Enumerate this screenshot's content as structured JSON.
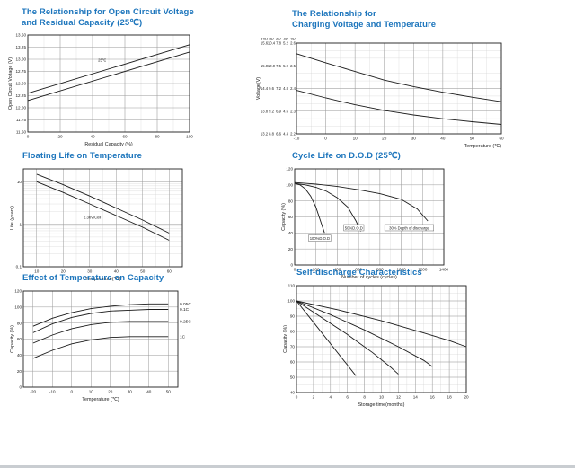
{
  "page": {
    "background": "#ffffff",
    "title_color": "#1c75bc"
  },
  "chart_data": [
    {
      "name": "open-circuit-voltage-vs-residual-capacity",
      "type": "line",
      "title": "The Relationship for Open Circuit Voltage\nand Residual Capacity (25℃)",
      "xlabel": "Residual Capacity (%)",
      "ylabel": "Open Circuit Voltage (V)",
      "xlim": [
        0,
        100
      ],
      "ylim": [
        11.5,
        13.5
      ],
      "xticks": [
        0,
        20,
        40,
        60,
        80,
        100
      ],
      "yticks": [
        11.5,
        11.75,
        12,
        12.25,
        12.5,
        12.75,
        13,
        13.25,
        13.5
      ],
      "ytick_labels": [
        "11.50",
        "11.75",
        "12.00",
        "12.25",
        "12.50",
        "12.75",
        "13.00",
        "13.25",
        "13.50"
      ],
      "xminor": 2,
      "yminor": 1,
      "grid": true,
      "legend": "none",
      "series": [
        {
          "name": "upper-line",
          "points": [
            [
              0,
              12.3
            ],
            [
              100,
              13.3
            ]
          ]
        },
        {
          "name": "lower-line",
          "points": [
            [
              0,
              12.15
            ],
            [
              100,
              13.15
            ]
          ]
        }
      ],
      "annotations": [
        {
          "x": 46,
          "y": 12.98,
          "text": "25℃"
        }
      ]
    },
    {
      "name": "charging-voltage-vs-temperature",
      "type": "line",
      "title": "The Relationship for\nCharging Voltage and Temperature",
      "xlabel": "Temperature (℃)",
      "xlabel_pos": "right",
      "ylabel": "Voltage(V)",
      "xlim": [
        -10,
        60
      ],
      "ylim": [
        13.2,
        15.6
      ],
      "xticks": [
        -10,
        0,
        10,
        20,
        30,
        40,
        50,
        60
      ],
      "yticks": [
        13.2,
        13.8,
        14.4,
        15,
        15.6
      ],
      "y_multi": {
        "headers": [
          "12V",
          "8V",
          "6V",
          "4V",
          "2V"
        ],
        "row_values": [
          15.6,
          15,
          14.4,
          13.8,
          13.2
        ],
        "rows": [
          [
            "15.6",
            "10.4",
            "7.8",
            "5.2",
            "2.6"
          ],
          [
            "15.0",
            "10.0",
            "7.5",
            "5.0",
            "2.5"
          ],
          [
            "14.4",
            "9.6",
            "7.2",
            "4.8",
            "2.4"
          ],
          [
            "13.8",
            "9.2",
            "6.9",
            "4.6",
            "2.3"
          ],
          [
            "13.2",
            "8.8",
            "6.6",
            "4.4",
            "2.2"
          ]
        ]
      },
      "xminor": 2,
      "yminor": 3,
      "grid": true,
      "legend": "none",
      "series": [
        {
          "name": "cycle-use",
          "points": [
            [
              -10,
              15.32
            ],
            [
              0,
              15.08
            ],
            [
              10,
              14.85
            ],
            [
              20,
              14.62
            ],
            [
              30,
              14.45
            ],
            [
              40,
              14.3
            ],
            [
              50,
              14.17
            ],
            [
              60,
              14.05
            ]
          ]
        },
        {
          "name": "float-use",
          "points": [
            [
              -10,
              14.35
            ],
            [
              0,
              14.15
            ],
            [
              10,
              13.97
            ],
            [
              20,
              13.82
            ],
            [
              30,
              13.7
            ],
            [
              40,
              13.6
            ],
            [
              50,
              13.52
            ],
            [
              60,
              13.45
            ]
          ]
        }
      ]
    },
    {
      "name": "floating-life-on-temperature",
      "type": "line",
      "title": "Floating Life on Temperature",
      "xlabel": "Temperature(℃)",
      "ylabel": "Life (years)",
      "xlim": [
        5,
        65
      ],
      "ylim": [
        0.1,
        20
      ],
      "logy": true,
      "xticks": [
        10,
        20,
        30,
        40,
        50,
        60
      ],
      "yticks": [
        10,
        1,
        0.1
      ],
      "ytick_labels": [
        "10",
        "1",
        "0.1"
      ],
      "xminor": 2,
      "yminor": 1,
      "grid": true,
      "legend": "none",
      "series": [
        {
          "name": "upper-line",
          "points": [
            [
              10,
              15
            ],
            [
              20,
              8.5
            ],
            [
              30,
              4.6
            ],
            [
              40,
              2.4
            ],
            [
              50,
              1.25
            ],
            [
              60,
              0.62
            ]
          ]
        },
        {
          "name": "lower-line",
          "points": [
            [
              10,
              10
            ],
            [
              20,
              5.6
            ],
            [
              30,
              3
            ],
            [
              40,
              1.6
            ],
            [
              50,
              0.85
            ],
            [
              60,
              0.42
            ]
          ]
        }
      ],
      "annotations": [
        {
          "x": 31,
          "y": 1.45,
          "text": "2.30V/Cell"
        }
      ]
    },
    {
      "name": "cycle-life-on-dod",
      "type": "line",
      "title": "Cycle Life on D.O.D (25℃)",
      "xlabel": "Number of cycles (cycles)",
      "ylabel": "Capacity (%)",
      "xlim": [
        0,
        1400
      ],
      "ylim": [
        0,
        120
      ],
      "xticks": [
        0,
        200,
        400,
        600,
        800,
        1000,
        1200,
        1400
      ],
      "yticks": [
        0,
        20,
        40,
        60,
        80,
        100,
        120
      ],
      "xminor": 2,
      "yminor": 1,
      "grid": true,
      "legend": "none",
      "series": [
        {
          "name": "dod-100",
          "points": [
            [
              0,
              102
            ],
            [
              50,
              100
            ],
            [
              100,
              95
            ],
            [
              150,
              86
            ],
            [
              200,
              72
            ],
            [
              250,
              52
            ],
            [
              280,
              40
            ]
          ]
        },
        {
          "name": "dod-50",
          "points": [
            [
              0,
              102
            ],
            [
              100,
              100
            ],
            [
              200,
              97
            ],
            [
              300,
              92
            ],
            [
              400,
              84
            ],
            [
              500,
              72
            ],
            [
              575,
              55
            ],
            [
              620,
              42
            ]
          ]
        },
        {
          "name": "dod-30",
          "points": [
            [
              0,
              103
            ],
            [
              200,
              101
            ],
            [
              400,
              98
            ],
            [
              600,
              94
            ],
            [
              800,
              89
            ],
            [
              1000,
              82
            ],
            [
              1150,
              70
            ],
            [
              1250,
              55
            ]
          ]
        }
      ],
      "annotations": [
        {
          "x": 235,
          "y": 33,
          "text": "100%D.O.D",
          "boxed": true
        },
        {
          "x": 555,
          "y": 46,
          "text": "50%D.O.D",
          "boxed": true
        },
        {
          "x": 1075,
          "y": 46,
          "text": "30% Depth of discharge",
          "boxed": true
        }
      ]
    },
    {
      "name": "effect-of-temperature-on-capacity",
      "type": "line",
      "title": "Effect of Temperature on Capacity",
      "xlabel": "Temperature (℃)",
      "ylabel": "Capacity (%)",
      "xlim": [
        -25,
        55
      ],
      "ylim": [
        0,
        120
      ],
      "xticks": [
        -20,
        -10,
        0,
        10,
        20,
        30,
        40,
        50
      ],
      "yticks": [
        0,
        20,
        40,
        60,
        80,
        100,
        120
      ],
      "xminor": 1,
      "yminor": 1,
      "grid": true,
      "legend": "right-labels",
      "series": [
        {
          "name": "rate-0-05c",
          "label": "0.05C",
          "points": [
            [
              -20,
              76
            ],
            [
              -10,
              86
            ],
            [
              0,
              93
            ],
            [
              10,
              98
            ],
            [
              20,
              101
            ],
            [
              30,
              103
            ],
            [
              40,
              104
            ],
            [
              50,
              104
            ]
          ]
        },
        {
          "name": "rate-0-1c",
          "label": "0.1C",
          "points": [
            [
              -20,
              68
            ],
            [
              -10,
              79
            ],
            [
              0,
              87
            ],
            [
              10,
              92
            ],
            [
              20,
              95
            ],
            [
              30,
              96
            ],
            [
              40,
              97
            ],
            [
              50,
              97
            ]
          ]
        },
        {
          "name": "rate-0-25c",
          "label": "0.25C",
          "points": [
            [
              -20,
              55
            ],
            [
              -10,
              65
            ],
            [
              0,
              73
            ],
            [
              10,
              78
            ],
            [
              20,
              81
            ],
            [
              30,
              82
            ],
            [
              40,
              82
            ],
            [
              50,
              82
            ]
          ]
        },
        {
          "name": "rate-1c",
          "label": "1C",
          "points": [
            [
              -20,
              36
            ],
            [
              -10,
              46
            ],
            [
              0,
              54
            ],
            [
              10,
              59
            ],
            [
              20,
              62
            ],
            [
              30,
              63
            ],
            [
              40,
              63
            ],
            [
              50,
              63
            ]
          ]
        }
      ]
    },
    {
      "name": "self-discharge-characteristics",
      "type": "line",
      "title": "Self-discharge Characteristics",
      "xlabel": "Storage time(months)",
      "ylabel": "Capacity (%)",
      "xlim": [
        0,
        20
      ],
      "ylim": [
        40,
        110
      ],
      "xticks": [
        0,
        2,
        4,
        6,
        8,
        10,
        12,
        14,
        16,
        18,
        20
      ],
      "yticks": [
        40,
        50,
        60,
        70,
        80,
        90,
        100,
        110
      ],
      "xminor": 2,
      "yminor": 2,
      "grid": true,
      "legend": "none",
      "series": [
        {
          "name": "storage-40c",
          "points": [
            [
              0,
              100
            ],
            [
              2,
              86
            ],
            [
              4,
              72
            ],
            [
              6,
              58
            ],
            [
              7,
              51
            ]
          ]
        },
        {
          "name": "storage-30c",
          "points": [
            [
              0,
              100
            ],
            [
              3,
              89
            ],
            [
              6,
              78
            ],
            [
              9,
              66
            ],
            [
              11,
              57
            ],
            [
              12,
              52
            ]
          ]
        },
        {
          "name": "storage-25c",
          "points": [
            [
              0,
              100
            ],
            [
              4,
              91
            ],
            [
              8,
              81
            ],
            [
              12,
              70
            ],
            [
              15,
              61
            ],
            [
              16,
              57
            ]
          ]
        },
        {
          "name": "storage-5c",
          "points": [
            [
              0,
              100
            ],
            [
              5,
              94
            ],
            [
              10,
              87
            ],
            [
              15,
              79
            ],
            [
              18,
              74
            ],
            [
              20,
              70
            ]
          ]
        }
      ]
    }
  ]
}
